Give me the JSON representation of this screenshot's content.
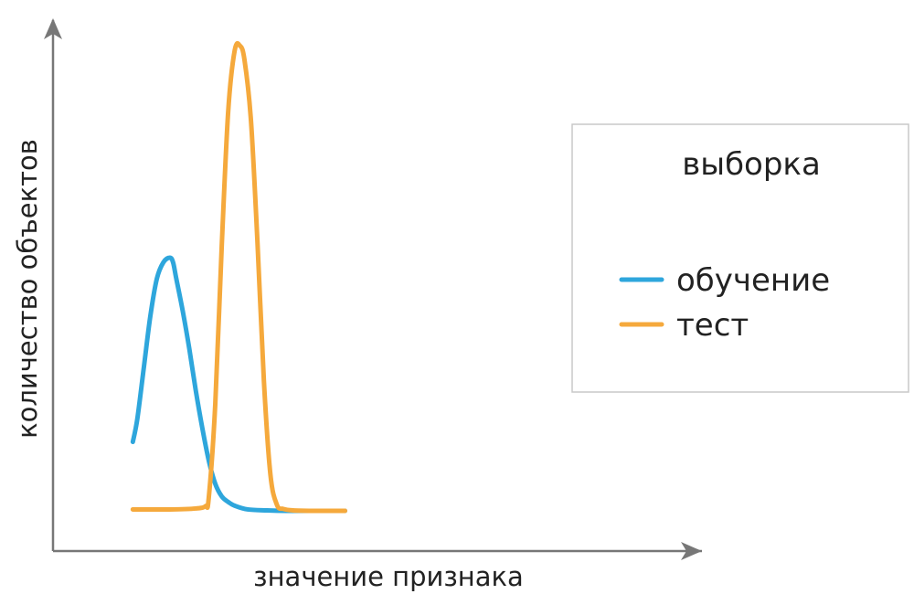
{
  "chart_data": {
    "type": "line",
    "title": "",
    "xlabel": "значение признака",
    "ylabel": "количество объектов",
    "grid": false,
    "xlim": [
      0,
      100
    ],
    "ylim": [
      0,
      100
    ],
    "legend": {
      "title": "выборка",
      "placement": "right"
    },
    "series": [
      {
        "name": "обучение",
        "color": "#2ea6dc",
        "x": [
          12.3,
          13.0,
          14.0,
          15.0,
          16.0,
          17.0,
          18.0,
          18.5,
          19.0,
          20.0,
          21.0,
          22.0,
          23.0,
          24.0,
          25.0,
          26.0,
          27.0,
          28.0,
          30.0,
          33.0,
          36.0,
          40.0,
          45.0
        ],
        "y": [
          15.0,
          20.0,
          31.0,
          42.0,
          50.0,
          53.5,
          54.5,
          53.5,
          50.0,
          43.0,
          35.0,
          26.0,
          18.0,
          11.0,
          6.0,
          3.3,
          2.1,
          1.3,
          0.5,
          0.3,
          0.2,
          0.2,
          0.2
        ]
      },
      {
        "name": "тест",
        "color": "#f5a93c",
        "x": [
          12.3,
          18.0,
          22.0,
          23.5,
          24.0,
          25.0,
          26.0,
          27.0,
          28.0,
          28.8,
          29.5,
          30.5,
          31.5,
          32.5,
          33.5,
          34.5,
          35.5,
          37.0,
          40.0,
          45.0
        ],
        "y": [
          0.5,
          0.5,
          0.7,
          1.2,
          3.0,
          23.0,
          57.0,
          86.0,
          99.0,
          100.0,
          97.0,
          84.0,
          58.0,
          28.0,
          8.0,
          1.5,
          0.6,
          0.3,
          0.2,
          0.2
        ]
      }
    ]
  }
}
